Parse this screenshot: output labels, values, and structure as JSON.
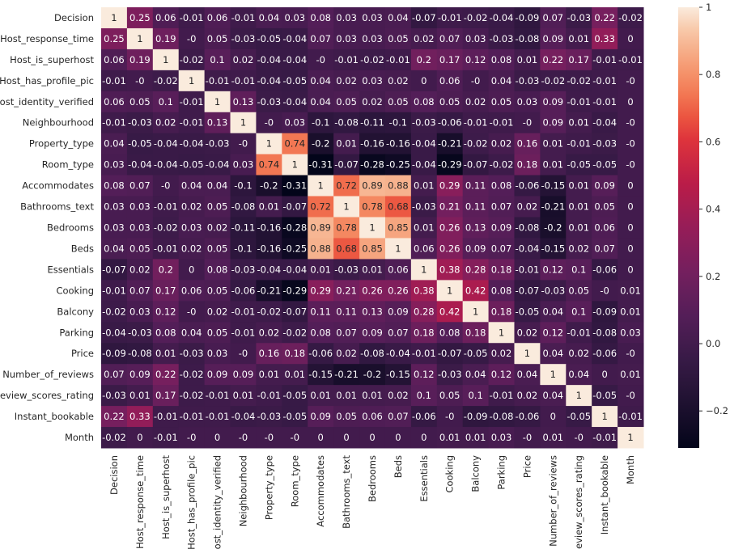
{
  "chart_data": {
    "type": "heatmap",
    "title": "",
    "xlabel": "",
    "ylabel": "",
    "labels": [
      "Decision",
      "Host_response_time",
      "Host_is_superhost",
      "Host_has_profile_pic",
      "Host_identity_verified",
      "Neighbourhood",
      "Property_type",
      "Room_type",
      "Accommodates",
      "Bathrooms_text",
      "Bedrooms",
      "Beds",
      "Essentials",
      "Cooking",
      "Balcony",
      "Parking",
      "Price",
      "Number_of_reviews",
      "Review_scores_rating",
      "Instant_bookable",
      "Month"
    ],
    "matrix": [
      [
        1,
        0.25,
        0.06,
        -0.01,
        0.06,
        -0.01,
        0.04,
        0.03,
        0.08,
        0.03,
        0.03,
        0.04,
        -0.07,
        -0.01,
        -0.02,
        -0.04,
        -0.09,
        0.07,
        -0.03,
        0.22,
        -0.02
      ],
      [
        0.25,
        1,
        0.19,
        0,
        0.05,
        -0.03,
        -0.05,
        -0.04,
        0.07,
        0.03,
        0.03,
        0.05,
        0.02,
        0.07,
        0.03,
        -0.03,
        -0.08,
        0.09,
        0.01,
        0.33,
        0
      ],
      [
        0.06,
        0.19,
        1,
        -0.02,
        0.1,
        0.02,
        -0.04,
        -0.04,
        0,
        -0.01,
        -0.02,
        -0.01,
        0.2,
        0.17,
        0.12,
        0.08,
        0.01,
        0.22,
        0.17,
        -0.01,
        -0.01
      ],
      [
        -0.01,
        0,
        -0.02,
        1,
        -0.01,
        -0.01,
        -0.04,
        -0.05,
        0.04,
        0.02,
        0.03,
        0.02,
        0,
        0.06,
        0,
        0.04,
        -0.03,
        -0.02,
        -0.02,
        -0.01,
        0
      ],
      [
        0.06,
        0.05,
        0.1,
        -0.01,
        1,
        0.13,
        -0.03,
        -0.04,
        0.04,
        0.05,
        0.02,
        0.05,
        0.08,
        0.05,
        0.02,
        0.05,
        0.03,
        0.09,
        -0.01,
        -0.01,
        0
      ],
      [
        -0.01,
        -0.03,
        0.02,
        -0.01,
        0.13,
        1,
        0,
        0.03,
        -0.1,
        -0.08,
        -0.11,
        -0.1,
        -0.03,
        -0.06,
        -0.01,
        -0.01,
        0,
        0.09,
        0.01,
        -0.04,
        0
      ],
      [
        0.04,
        -0.05,
        -0.04,
        -0.04,
        -0.03,
        0,
        1,
        0.74,
        -0.2,
        0.01,
        -0.16,
        -0.16,
        -0.04,
        -0.21,
        -0.02,
        0.02,
        0.16,
        0.01,
        -0.01,
        -0.03,
        0
      ],
      [
        0.03,
        -0.04,
        -0.04,
        -0.05,
        -0.04,
        0.03,
        0.74,
        1,
        -0.31,
        -0.07,
        -0.28,
        -0.25,
        -0.04,
        -0.29,
        -0.07,
        -0.02,
        0.18,
        0.01,
        -0.05,
        -0.05,
        0
      ],
      [
        0.08,
        0.07,
        0,
        0.04,
        0.04,
        -0.1,
        -0.2,
        -0.31,
        1,
        0.72,
        0.89,
        0.88,
        0.01,
        0.29,
        0.11,
        0.08,
        -0.06,
        -0.15,
        0.01,
        0.09,
        0
      ],
      [
        0.03,
        0.03,
        -0.01,
        0.02,
        0.05,
        -0.08,
        0.01,
        -0.07,
        0.72,
        1,
        0.78,
        0.68,
        -0.03,
        0.21,
        0.11,
        0.07,
        0.02,
        -0.21,
        0.01,
        0.05,
        0
      ],
      [
        0.03,
        0.03,
        -0.02,
        0.03,
        0.02,
        -0.11,
        -0.16,
        -0.28,
        0.89,
        0.78,
        1,
        0.85,
        0.01,
        0.26,
        0.13,
        0.09,
        -0.08,
        -0.2,
        0.01,
        0.06,
        0
      ],
      [
        0.04,
        0.05,
        -0.01,
        0.02,
        0.05,
        -0.1,
        -0.16,
        -0.25,
        0.88,
        0.68,
        0.85,
        1,
        0.06,
        0.26,
        0.09,
        0.07,
        -0.04,
        -0.15,
        0.02,
        0.07,
        0
      ],
      [
        -0.07,
        0.02,
        0.2,
        0,
        0.08,
        -0.03,
        -0.04,
        -0.04,
        0.01,
        -0.03,
        0.01,
        0.06,
        1,
        0.38,
        0.28,
        0.18,
        -0.01,
        0.12,
        0.1,
        -0.06,
        0
      ],
      [
        -0.01,
        0.07,
        0.17,
        0.06,
        0.05,
        -0.06,
        -0.21,
        -0.29,
        0.29,
        0.21,
        0.26,
        0.26,
        0.38,
        1,
        0.42,
        0.08,
        -0.07,
        -0.03,
        0.05,
        0,
        0.01
      ],
      [
        -0.02,
        0.03,
        0.12,
        0,
        0.02,
        -0.01,
        -0.02,
        -0.07,
        0.11,
        0.11,
        0.13,
        0.09,
        0.28,
        0.42,
        1,
        0.18,
        -0.05,
        0.04,
        0.1,
        -0.09,
        0.01
      ],
      [
        -0.04,
        -0.03,
        0.08,
        0.04,
        0.05,
        -0.01,
        0.02,
        -0.02,
        0.08,
        0.07,
        0.09,
        0.07,
        0.18,
        0.08,
        0.18,
        1,
        0.02,
        0.12,
        -0.01,
        -0.08,
        0.03
      ],
      [
        -0.09,
        -0.08,
        0.01,
        -0.03,
        0.03,
        0,
        0.16,
        0.18,
        -0.06,
        0.02,
        -0.08,
        -0.04,
        -0.01,
        -0.07,
        -0.05,
        0.02,
        1,
        0.04,
        0.02,
        -0.06,
        0
      ],
      [
        0.07,
        0.09,
        0.22,
        -0.02,
        0.09,
        0.09,
        0.01,
        0.01,
        -0.15,
        -0.21,
        -0.2,
        -0.15,
        0.12,
        -0.03,
        0.04,
        0.12,
        0.04,
        1,
        0.04,
        0,
        0.01
      ],
      [
        -0.03,
        0.01,
        0.17,
        -0.02,
        -0.01,
        0.01,
        -0.01,
        -0.05,
        0.01,
        0.01,
        0.01,
        0.02,
        0.1,
        0.05,
        0.1,
        -0.01,
        0.02,
        0.04,
        1,
        -0.05,
        0
      ],
      [
        0.22,
        0.33,
        -0.01,
        -0.01,
        -0.01,
        -0.04,
        -0.03,
        -0.05,
        0.09,
        0.05,
        0.06,
        0.07,
        -0.06,
        0,
        -0.09,
        -0.08,
        -0.06,
        0,
        -0.05,
        1,
        -0.01
      ],
      [
        -0.02,
        0,
        -0.01,
        0,
        0,
        0,
        0,
        0,
        0,
        0,
        0,
        0,
        0,
        0.01,
        0.01,
        0.03,
        0,
        0.01,
        0,
        -0.01,
        1
      ]
    ],
    "colorbar": {
      "vmin": -0.31,
      "vmax": 1,
      "ticks": [
        1,
        0.8,
        0.6,
        0.4,
        0.2,
        0.0,
        -0.2
      ],
      "tick_labels": [
        "1",
        "0.8",
        "0.6",
        "0.4",
        "0.2",
        "0.0",
        "−0.2"
      ],
      "colormap": "rocket"
    }
  }
}
